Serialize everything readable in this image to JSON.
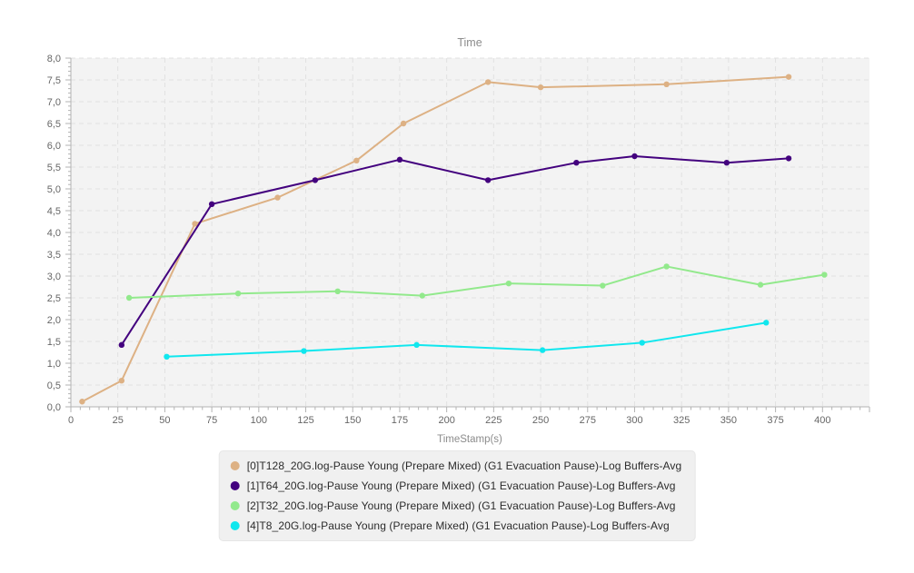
{
  "chart_data": {
    "type": "line",
    "title": "Time",
    "xlabel": "TimeStamp(s)",
    "ylabel": "",
    "xlim": [
      0,
      425
    ],
    "ylim": [
      0,
      8
    ],
    "x_ticks": [
      0,
      25,
      50,
      75,
      100,
      125,
      150,
      175,
      200,
      225,
      250,
      275,
      300,
      325,
      350,
      375,
      400
    ],
    "x_tick_labels": [
      "0",
      "25",
      "50",
      "75",
      "100",
      "125",
      "150",
      "175",
      "200",
      "225",
      "250",
      "275",
      "300",
      "325",
      "350",
      "375",
      "400"
    ],
    "y_ticks": [
      0,
      0.5,
      1,
      1.5,
      2,
      2.5,
      3,
      3.5,
      4,
      4.5,
      5,
      5.5,
      6,
      6.5,
      7,
      7.5,
      8
    ],
    "y_tick_labels": [
      "0,0",
      "0,5",
      "1,0",
      "1,5",
      "2,0",
      "2,5",
      "3,0",
      "3,5",
      "4,0",
      "4,5",
      "5,0",
      "5,5",
      "6,0",
      "6,5",
      "7,0",
      "7,5",
      "8,0"
    ],
    "grid": "dashed",
    "legend_position": "bottom-center",
    "plot_bg": "#f3f3f3",
    "grid_color": "#e1e1e1",
    "axis_color": "#b3b3b3",
    "tick_label_color": "#666666",
    "title_color": "#8c8c8c",
    "series": [
      {
        "name": "[0]T128_20G.log-Pause Young (Prepare Mixed) (G1 Evacuation Pause)-Log Buffers-Avg",
        "color": "#ddb184",
        "points": [
          [
            6,
            0.12
          ],
          [
            27,
            0.6
          ],
          [
            66,
            4.2
          ],
          [
            110,
            4.8
          ],
          [
            152,
            5.65
          ],
          [
            177,
            6.5
          ],
          [
            222,
            7.45
          ],
          [
            250,
            7.33
          ],
          [
            317,
            7.4
          ],
          [
            382,
            7.57
          ]
        ]
      },
      {
        "name": "[1]T64_20G.log-Pause Young (Prepare Mixed) (G1 Evacuation Pause)-Log Buffers-Avg",
        "color": "#43017e",
        "points": [
          [
            27,
            1.42
          ],
          [
            75,
            4.65
          ],
          [
            130,
            5.2
          ],
          [
            175,
            5.67
          ],
          [
            222,
            5.2
          ],
          [
            269,
            5.6
          ],
          [
            300,
            5.75
          ],
          [
            349,
            5.6
          ],
          [
            382,
            5.7
          ]
        ]
      },
      {
        "name": "[2]T32_20G.log-Pause Young (Prepare Mixed) (G1 Evacuation Pause)-Log Buffers-Avg",
        "color": "#92e98c",
        "points": [
          [
            31,
            2.5
          ],
          [
            89,
            2.6
          ],
          [
            142,
            2.65
          ],
          [
            187,
            2.55
          ],
          [
            233,
            2.83
          ],
          [
            283,
            2.78
          ],
          [
            317,
            3.22
          ],
          [
            367,
            2.8
          ],
          [
            401,
            3.03
          ]
        ]
      },
      {
        "name": "[4]T8_20G.log-Pause Young (Prepare Mixed) (G1 Evacuation Pause)-Log Buffers-Avg",
        "color": "#10e7ee",
        "points": [
          [
            51,
            1.15
          ],
          [
            124,
            1.28
          ],
          [
            184,
            1.42
          ],
          [
            251,
            1.3
          ],
          [
            304,
            1.47
          ],
          [
            370,
            1.93
          ]
        ]
      }
    ]
  }
}
